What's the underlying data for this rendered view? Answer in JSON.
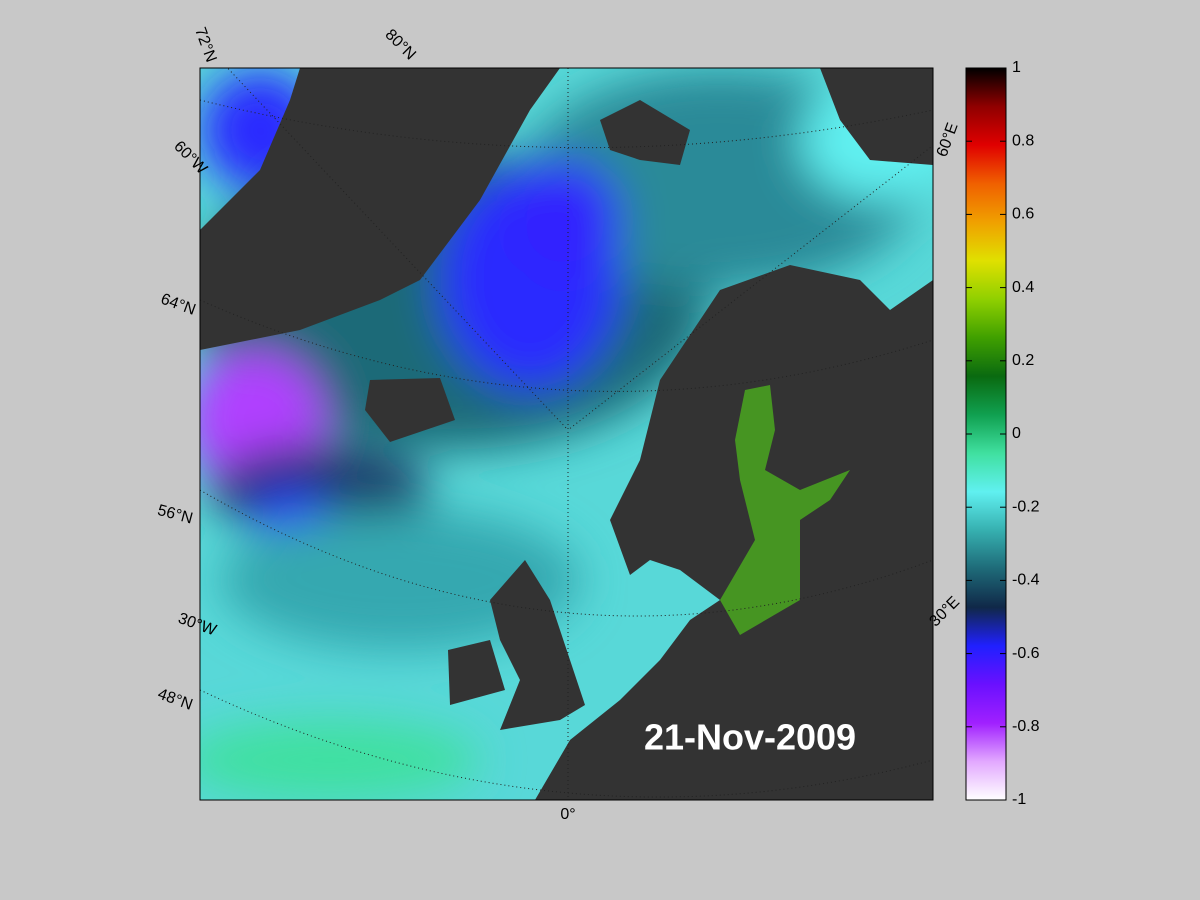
{
  "map": {
    "date_label": "21-Nov-2009",
    "graticule_labels": [
      "72°N",
      "80°N",
      "60°W",
      "64°N",
      "56°N",
      "30°W",
      "48°N",
      "0°",
      "60°E",
      "30°E"
    ]
  },
  "colorbar": {
    "lim": [
      -1,
      1
    ],
    "ticks": [
      -1,
      -0.8,
      -0.6,
      -0.4,
      -0.2,
      0,
      0.2,
      0.4,
      0.6,
      0.8,
      1
    ],
    "colors": [
      "#ffffff",
      "#e2a8ff",
      "#a020ff",
      "#6a10ff",
      "#2020ff",
      "#102848",
      "#1e6a78",
      "#36b0b0",
      "#60f0f0",
      "#40e0a0",
      "#10a050",
      "#0a6a10",
      "#40a000",
      "#90d000",
      "#e0e000",
      "#f0a000",
      "#f06000",
      "#e00000",
      "#900000",
      "#000000"
    ]
  }
}
